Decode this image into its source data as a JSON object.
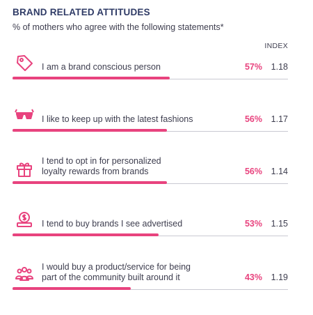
{
  "header": {
    "title": "BRAND RELATED ATTITUDES",
    "subtitle": "% of mothers who agree with the following statements*",
    "index_label": "INDEX"
  },
  "colors": {
    "accent": "#e8437e",
    "title": "#2f3b66",
    "track": "#c9c9d2"
  },
  "chart_data": {
    "type": "bar",
    "title": "BRAND RELATED ATTITUDES",
    "subtitle": "% of mothers who agree with the following statements*",
    "categories": [
      "I am a brand conscious person",
      "I like to keep up with the latest fashions",
      "I tend to opt in for personalized loyalty rewards from brands",
      "I tend to buy brands I see advertised",
      "I would buy a product/service for being part of the community built around it"
    ],
    "series": [
      {
        "name": "",
        "values": [
          57,
          56,
          56,
          53,
          43
        ]
      }
    ],
    "index_values": [
      1.18,
      1.17,
      1.14,
      1.15,
      1.19
    ],
    "ylim": [
      0,
      100
    ]
  },
  "rows": [
    {
      "icon": "tag-icon",
      "label_lines": [
        "I am a brand conscious person"
      ],
      "pct_text": "57%",
      "index_text": "1.18",
      "value": 57
    },
    {
      "icon": "sunglasses-icon",
      "label_lines": [
        "I like to keep up with the latest fashions"
      ],
      "pct_text": "56%",
      "index_text": "1.17",
      "value": 56
    },
    {
      "icon": "gift-icon",
      "label_lines": [
        "I tend to opt in for personalized",
        "loyalty rewards from brands"
      ],
      "pct_text": "56%",
      "index_text": "1.14",
      "value": 56
    },
    {
      "icon": "coin-screen-icon",
      "label_lines": [
        "I tend to buy brands I see advertised"
      ],
      "pct_text": "53%",
      "index_text": "1.15",
      "value": 53
    },
    {
      "icon": "community-icon",
      "label_lines": [
        "I would buy a product/service for being",
        "part of the community built around it"
      ],
      "pct_text": "43%",
      "index_text": "1.19",
      "value": 43
    }
  ]
}
